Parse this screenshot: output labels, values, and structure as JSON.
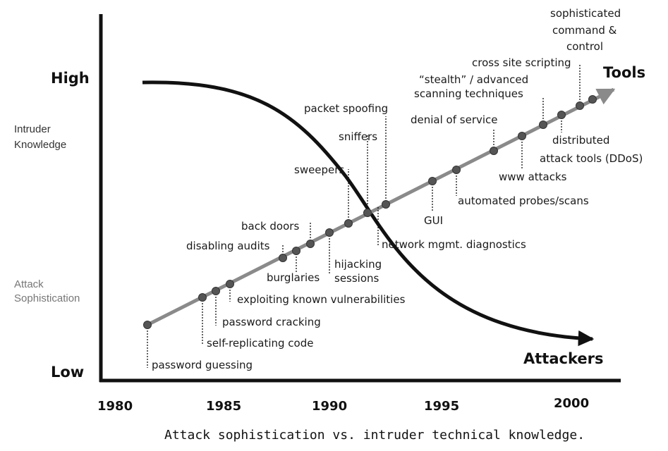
{
  "y_axis": {
    "high_label": "High",
    "low_label": "Low",
    "intruder_label_line1": "Intruder",
    "intruder_label_line2": "Knowledge",
    "attack_label_line1": "Attack",
    "attack_label_line2": "Sophistication"
  },
  "x_axis": {
    "years": [
      "1980",
      "1985",
      "1990",
      "1995",
      "2000"
    ]
  },
  "curves": {
    "tools_label": "Tools",
    "attackers_label": "Attackers"
  },
  "milestones": {
    "password_guessing": "password guessing",
    "self_replicating_code": "self-replicating code",
    "password_cracking": "password cracking",
    "exploiting_known_vulnerabilities": "exploiting known vulnerabilities",
    "disabling_audits": "disabling audits",
    "back_doors": "back doors",
    "burglaries": "burglaries",
    "hijacking_line1": "hijacking",
    "hijacking_line2": "sessions",
    "sweepers": "sweepers",
    "sniffers": "sniffers",
    "packet_spoofing": "packet spoofing",
    "network_mgmt_diagnostics": "network mgmt. diagnostics",
    "gui": "GUI",
    "automated_probes_scans": "automated probes/scans",
    "denial_of_service": "denial of service",
    "www_attacks": "www attacks",
    "stealth_line1": "“stealth” / advanced",
    "stealth_line2": "scanning techniques",
    "cross_site_scripting": "cross site scripting",
    "distributed_line1": "distributed",
    "distributed_line2": "attack tools (DDoS)",
    "sophisticated_line1": "sophisticated",
    "sophisticated_line2": "command &",
    "sophisticated_line3": "control"
  },
  "caption": "Attack sophistication vs. intruder technical knowledge."
}
